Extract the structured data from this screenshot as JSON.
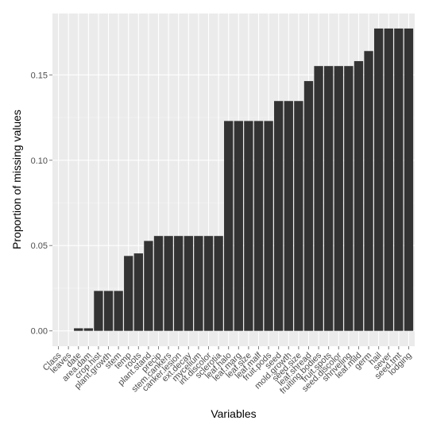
{
  "chart_data": {
    "type": "bar",
    "xlabel": "Variables",
    "ylabel": "Proportion of missing values",
    "ylim": [
      -0.009,
      0.186
    ],
    "yticks": [
      0.0,
      0.05,
      0.1,
      0.15
    ],
    "ytick_labels": [
      "0.00",
      "0.05",
      "0.10",
      "0.15"
    ],
    "grid": true,
    "bar_color": "#333333",
    "panel_color": "#ebebeb",
    "categories": [
      "Class",
      "leaves",
      "date",
      "area.dam",
      "crop.hist",
      "plant.growth",
      "stem",
      "temp",
      "roots",
      "plant.stand",
      "precip",
      "stem.cankers",
      "canker.lesion",
      "ext.decay",
      "mycelium",
      "int.discolor",
      "sclerotia",
      "leaf.halo",
      "leaf.marg",
      "leaf.size",
      "leaf.malf",
      "fruit.pods",
      "seed",
      "mold.growth",
      "seed.size",
      "leaf.shread",
      "fruiting.bodies",
      "fruit.spots",
      "seed.discolor",
      "shriveling",
      "leaf.mild",
      "germ",
      "hail",
      "sever",
      "seed.tmt",
      "lodging"
    ],
    "values": [
      0,
      0,
      0.0015,
      0.0015,
      0.0234,
      0.0234,
      0.0234,
      0.0439,
      0.0454,
      0.0527,
      0.0556,
      0.0556,
      0.0556,
      0.0556,
      0.0556,
      0.0556,
      0.0556,
      0.123,
      0.123,
      0.123,
      0.123,
      0.123,
      0.1347,
      0.1347,
      0.1347,
      0.1464,
      0.1552,
      0.1552,
      0.1552,
      0.1552,
      0.1581,
      0.164,
      0.1772,
      0.1772,
      0.1772,
      0.1772
    ]
  }
}
